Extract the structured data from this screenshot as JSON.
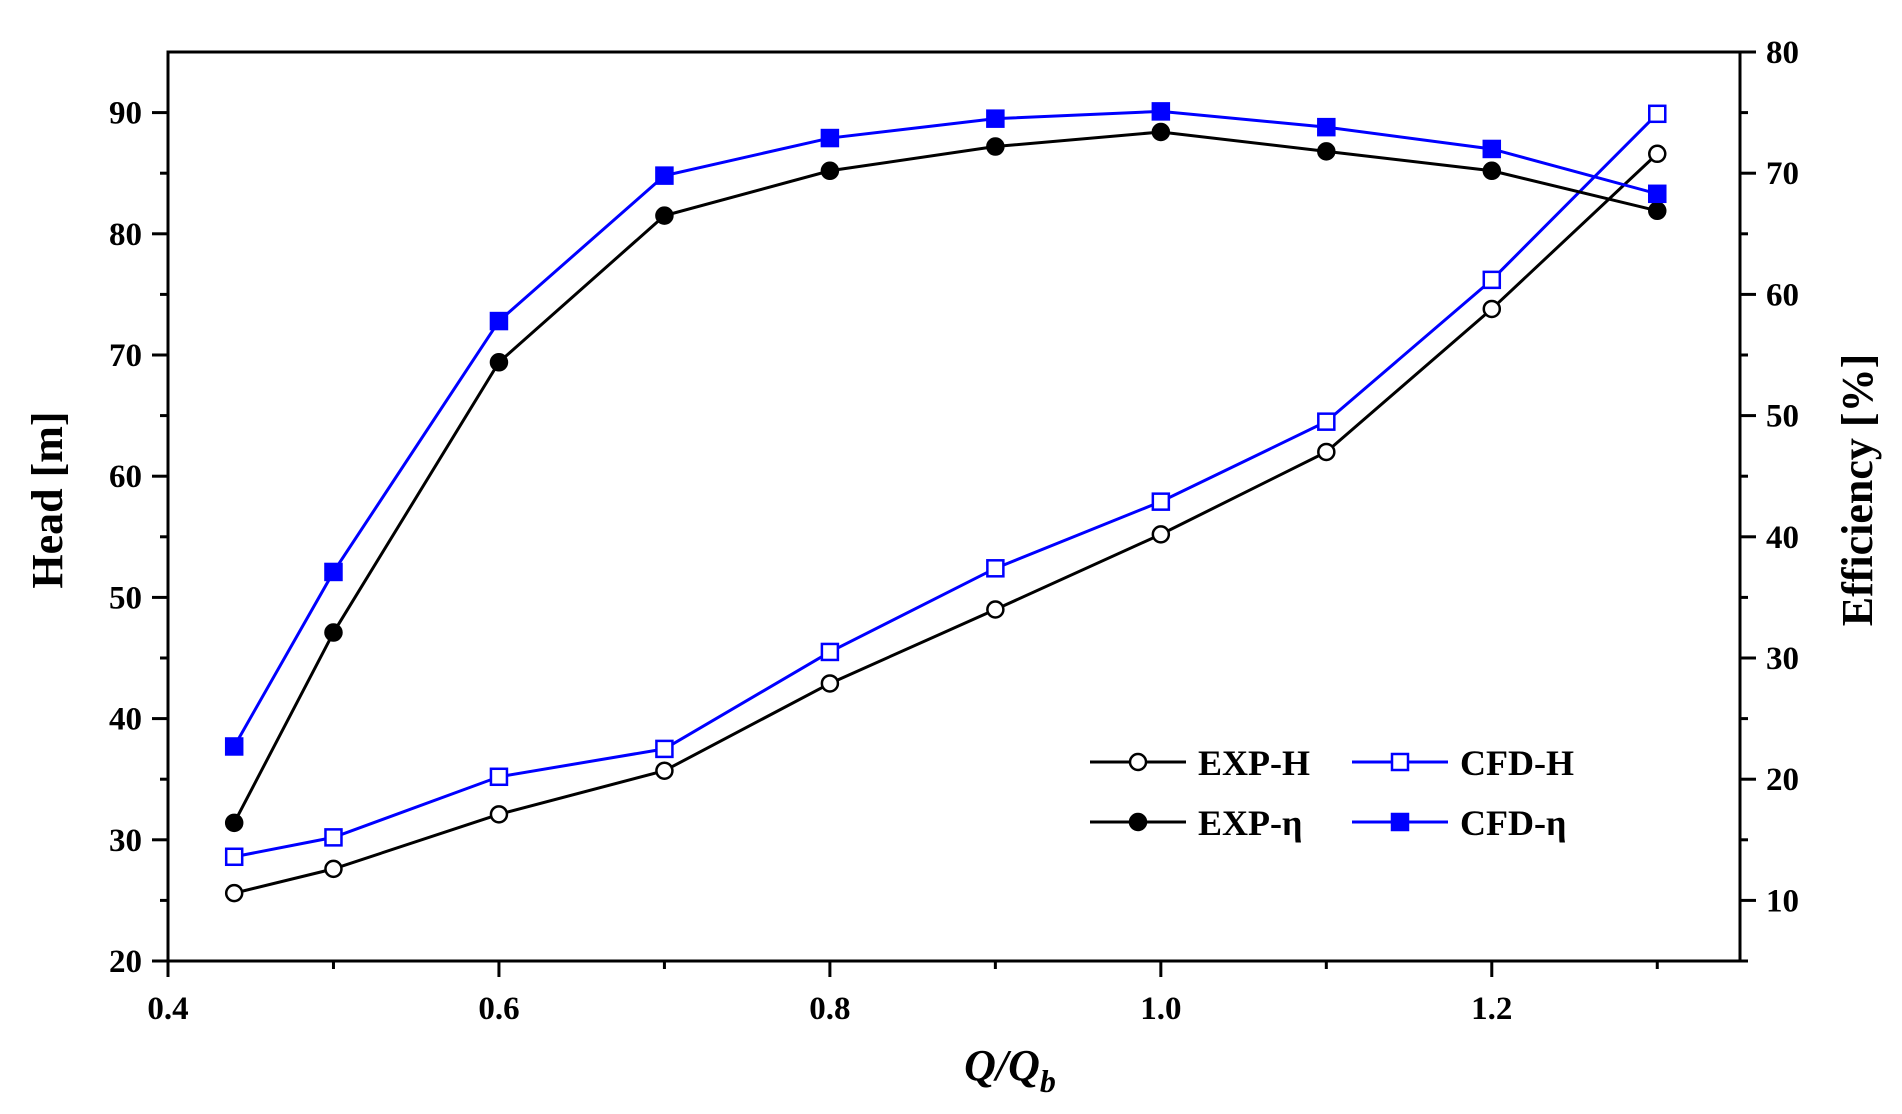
{
  "chart_data": {
    "type": "line",
    "xlabel_main": "Q/Q",
    "xlabel_sub": "b",
    "ylabel_left": "Head [m]",
    "ylabel_right": "Efficiency [%]",
    "xlim": [
      0.4,
      1.35
    ],
    "ylim_left": [
      20,
      95
    ],
    "ylim_right": [
      5,
      80
    ],
    "x_ticks": [
      "0.4",
      "0.6",
      "0.8",
      "1.0",
      "1.2"
    ],
    "x_tick_values": [
      0.4,
      0.6,
      0.8,
      1.0,
      1.2
    ],
    "y_left_ticks": [
      "20",
      "30",
      "40",
      "50",
      "60",
      "70",
      "80",
      "90"
    ],
    "y_left_tick_values": [
      20,
      30,
      40,
      50,
      60,
      70,
      80,
      90
    ],
    "y_right_ticks": [
      "10",
      "20",
      "30",
      "40",
      "50",
      "60",
      "70",
      "80"
    ],
    "y_right_tick_values": [
      10,
      20,
      30,
      40,
      50,
      60,
      70,
      80
    ],
    "x": [
      0.44,
      0.5,
      0.6,
      0.7,
      0.8,
      0.9,
      1.0,
      1.1,
      1.2,
      1.3
    ],
    "series": [
      {
        "name": "EXP-H",
        "axis": "left",
        "color": "#000000",
        "marker": "circle-open",
        "values": [
          25.6,
          27.6,
          32.1,
          35.7,
          42.9,
          49.0,
          55.2,
          62.0,
          73.8,
          86.6
        ]
      },
      {
        "name": "CFD-H",
        "axis": "left",
        "color": "#0000ff",
        "marker": "square-open",
        "values": [
          28.6,
          30.2,
          35.2,
          37.5,
          45.5,
          52.4,
          57.9,
          64.5,
          76.2,
          89.9
        ]
      },
      {
        "name": "EXP-η",
        "axis": "right",
        "color": "#000000",
        "marker": "circle-filled",
        "values": [
          16.4,
          32.1,
          54.4,
          66.5,
          70.2,
          72.2,
          73.4,
          71.8,
          70.2,
          66.9
        ]
      },
      {
        "name": "CFD-η",
        "axis": "right",
        "color": "#0000ff",
        "marker": "square-filled",
        "values": [
          22.7,
          37.1,
          57.8,
          69.8,
          72.9,
          74.5,
          75.1,
          73.8,
          72.0,
          68.3
        ]
      }
    ],
    "legend_position": "bottom-right"
  }
}
